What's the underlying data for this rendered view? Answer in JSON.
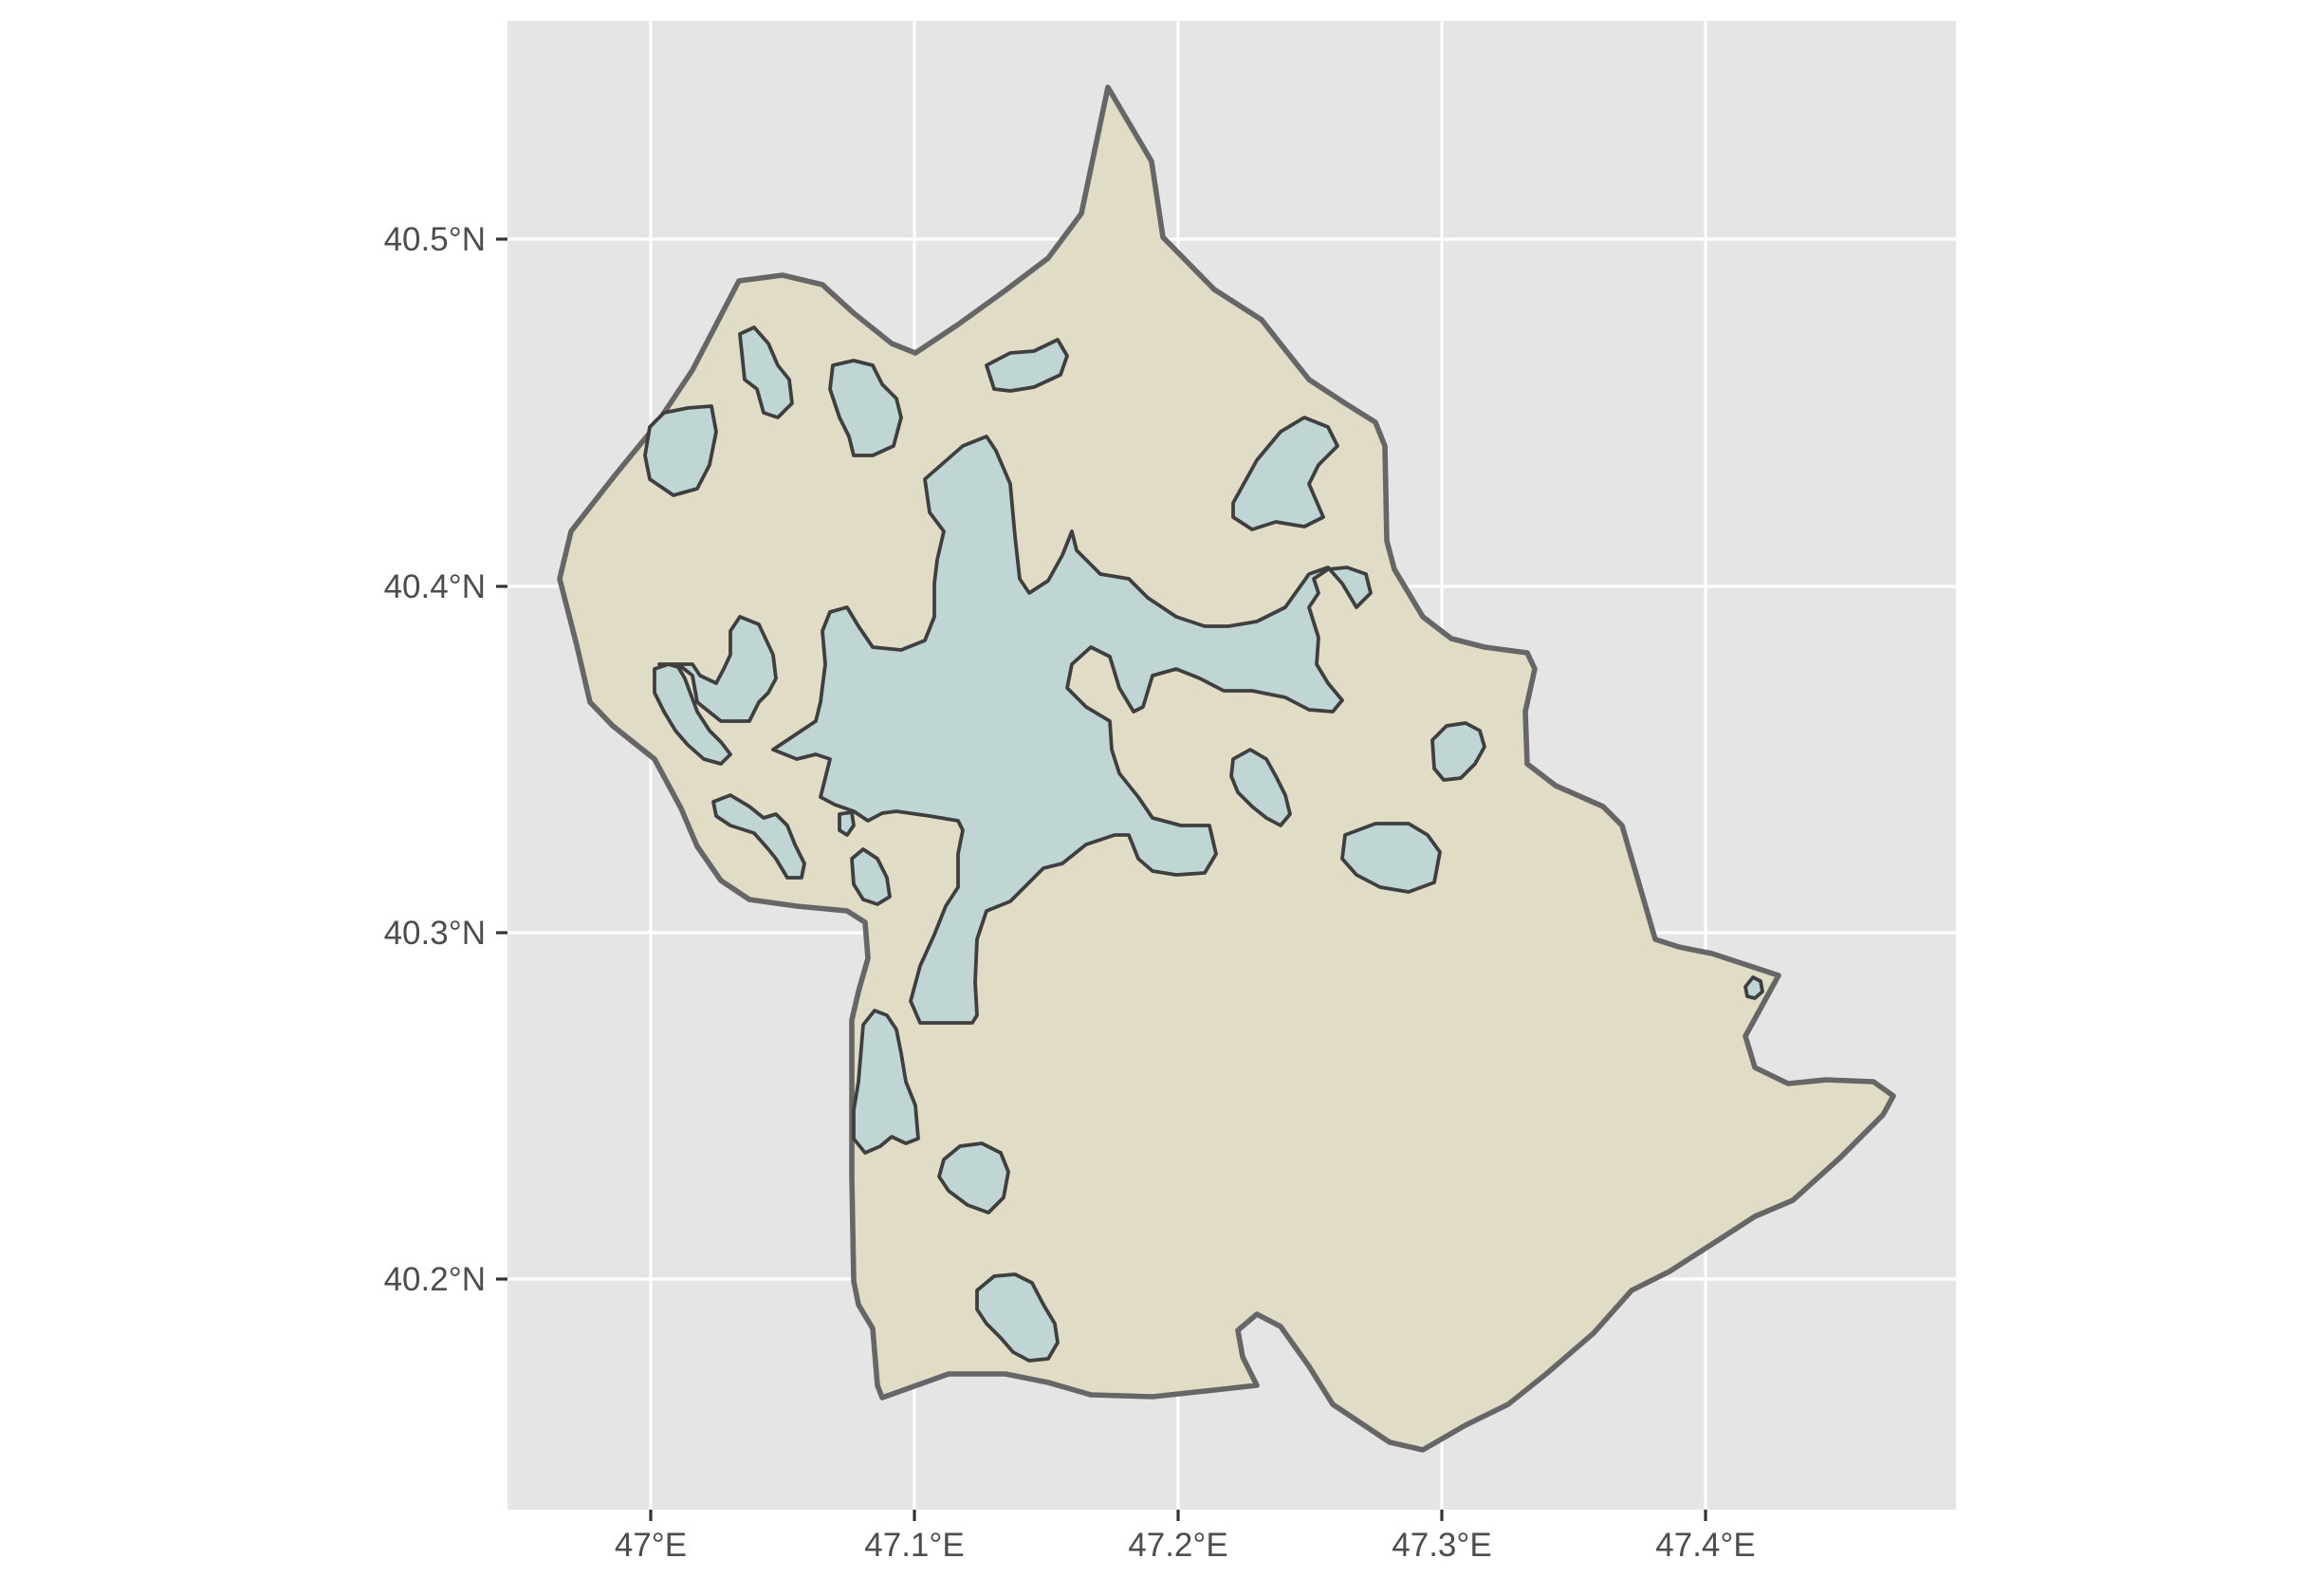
{
  "map": {
    "x_ticks": [
      "47°E",
      "47.1°E",
      "47.2°E",
      "47.3°E",
      "47.4°E"
    ],
    "y_ticks": [
      "40.5°N",
      "40.4°N",
      "40.3°N",
      "40.2°N"
    ],
    "layers": [
      {
        "name": "region-boundary",
        "fill": "#e0dcc6",
        "stroke": "#666666"
      },
      {
        "name": "water-bodies",
        "fill": "#bfd6d4",
        "stroke": "#3f3f3f"
      }
    ],
    "colors": {
      "panel_background": "#e5e5e5",
      "grid": "#ffffff",
      "axis_text": "#4d4d4d"
    }
  }
}
